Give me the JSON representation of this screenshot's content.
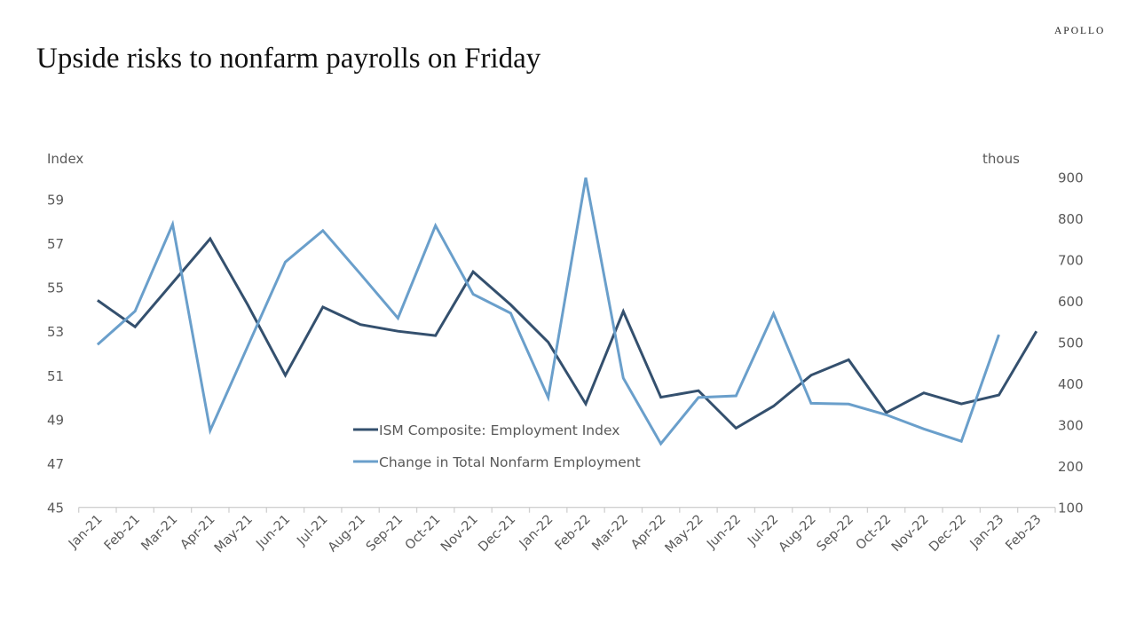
{
  "header": {
    "title": "Upside risks to nonfarm payrolls on Friday",
    "logo": "APOLLO"
  },
  "chart_data": {
    "type": "line",
    "title": "Upside risks to nonfarm payrolls on Friday",
    "ylabel_left": "Index",
    "ylabel_right": "thous",
    "ylim_left": [
      45,
      59
    ],
    "yticks_left": [
      45,
      47,
      49,
      51,
      53,
      55,
      57,
      59
    ],
    "ylim_right": [
      100,
      900
    ],
    "yticks_right": [
      100,
      200,
      300,
      400,
      500,
      600,
      700,
      800,
      900
    ],
    "grid": false,
    "legend_placement": "center-bottom",
    "categories": [
      "Jan-21",
      "Feb-21",
      "Mar-21",
      "Apr-21",
      "May-21",
      "Jun-21",
      "Jul-21",
      "Aug-21",
      "Sep-21",
      "Oct-21",
      "Nov-21",
      "Dec-21",
      "Jan-22",
      "Feb-22",
      "Mar-22",
      "Apr-22",
      "May-22",
      "Jun-22",
      "Jul-22",
      "Aug-22",
      "Sep-22",
      "Oct-22",
      "Nov-22",
      "Dec-22",
      "Jan-23",
      "Feb-23"
    ],
    "series": [
      {
        "name": "ISM Composite: Employment Index",
        "axis": "left",
        "color": "#34506e",
        "values": [
          54.4,
          53.2,
          55.2,
          57.2,
          54.2,
          51.0,
          54.1,
          53.3,
          53.0,
          52.8,
          55.7,
          54.2,
          52.5,
          49.7,
          53.9,
          50.0,
          50.3,
          48.6,
          49.6,
          51.0,
          51.7,
          49.3,
          50.2,
          49.7,
          50.1,
          53.0
        ]
      },
      {
        "name": "Change in Total Nonfarm Employment",
        "axis": "right",
        "color": "#6a9fcb",
        "values": [
          494,
          575,
          785,
          286,
          490,
          694,
          770,
          665,
          558,
          782,
          616,
          570,
          366,
          898,
          413,
          254,
          366,
          370,
          569,
          352,
          350,
          324,
          290,
          260,
          518,
          null
        ]
      }
    ]
  }
}
